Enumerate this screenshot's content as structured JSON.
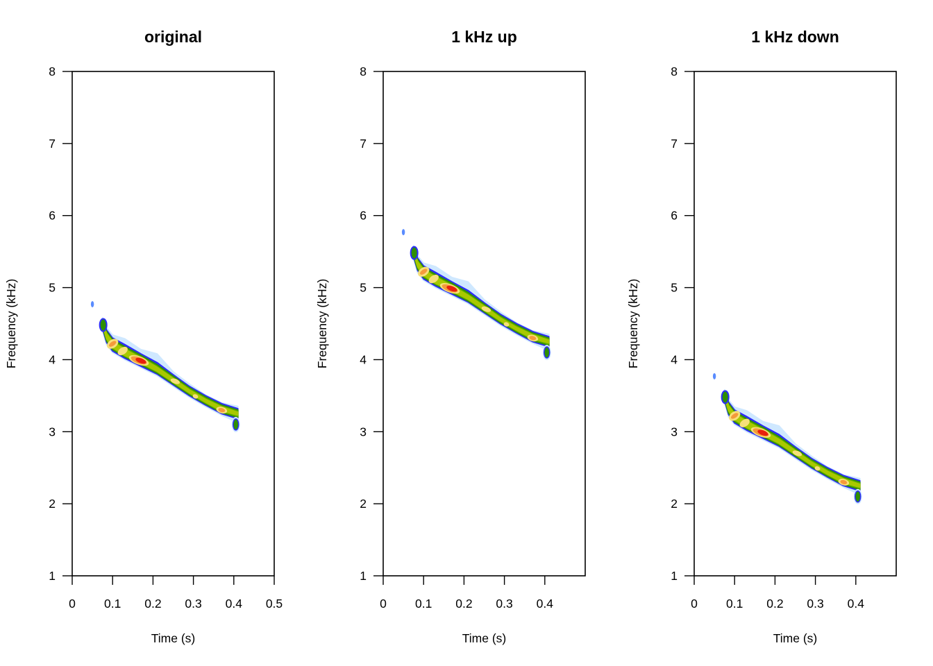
{
  "chart_data": [
    {
      "type": "heatmap",
      "subtype": "spectrogram",
      "title": "original",
      "xlabel": "Time (s)",
      "ylabel": "Frequency (kHz)",
      "xlim": [
        0,
        0.5
      ],
      "ylim": [
        1,
        8
      ],
      "xticks": [
        "0",
        "0.1",
        "0.2",
        "0.3",
        "0.4",
        "0.5"
      ],
      "yticks": [
        "1",
        "2",
        "3",
        "4",
        "5",
        "6",
        "7",
        "8"
      ],
      "frequency_shift_khz": 0,
      "peak": {
        "time": 0.17,
        "freq": 3.98
      }
    },
    {
      "type": "heatmap",
      "subtype": "spectrogram",
      "title": "1 kHz up",
      "xlabel": "Time (s)",
      "ylabel": "Frequency (kHz)",
      "xlim": [
        0,
        0.5
      ],
      "ylim": [
        1,
        8
      ],
      "xticks": [
        "0",
        "0.1",
        "0.2",
        "0.3",
        "0.4"
      ],
      "yticks": [
        "1",
        "2",
        "3",
        "4",
        "5",
        "6",
        "7",
        "8"
      ],
      "frequency_shift_khz": 1,
      "peak": {
        "time": 0.17,
        "freq": 4.98
      }
    },
    {
      "type": "heatmap",
      "subtype": "spectrogram",
      "title": "1 kHz down",
      "xlabel": "Time (s)",
      "ylabel": "Frequency (kHz)",
      "xlim": [
        0,
        0.5
      ],
      "ylim": [
        1,
        8
      ],
      "xticks": [
        "0",
        "0.1",
        "0.2",
        "0.3",
        "0.4"
      ],
      "yticks": [
        "1",
        "2",
        "3",
        "4",
        "5",
        "6",
        "7",
        "8"
      ],
      "frequency_shift_khz": -1,
      "peak": {
        "time": 0.17,
        "freq": 2.98
      }
    }
  ],
  "call_contour": {
    "note": "base contour of the call (time s, frequency kHz) for the original panel; shifted panels add frequency_shift_khz",
    "centerline": [
      [
        0.075,
        4.5
      ],
      [
        0.085,
        4.33
      ],
      [
        0.1,
        4.2
      ],
      [
        0.13,
        4.09
      ],
      [
        0.17,
        3.98
      ],
      [
        0.21,
        3.86
      ],
      [
        0.25,
        3.71
      ],
      [
        0.29,
        3.56
      ],
      [
        0.33,
        3.43
      ],
      [
        0.37,
        3.31
      ],
      [
        0.41,
        3.25
      ]
    ],
    "isolated_blob": [
      0.05,
      4.77
    ],
    "tail_blob": [
      0.405,
      3.1
    ],
    "colors": {
      "halo": "#cfe8ff",
      "blue": "#2b2bff",
      "blue_light": "#5a8cff",
      "green_dark": "#2f8f00",
      "green": "#5aa800",
      "yellowgreen": "#a8c800",
      "yellow": "#f6e07a",
      "orange": "#f59a3a",
      "red": "#e8200c"
    }
  }
}
